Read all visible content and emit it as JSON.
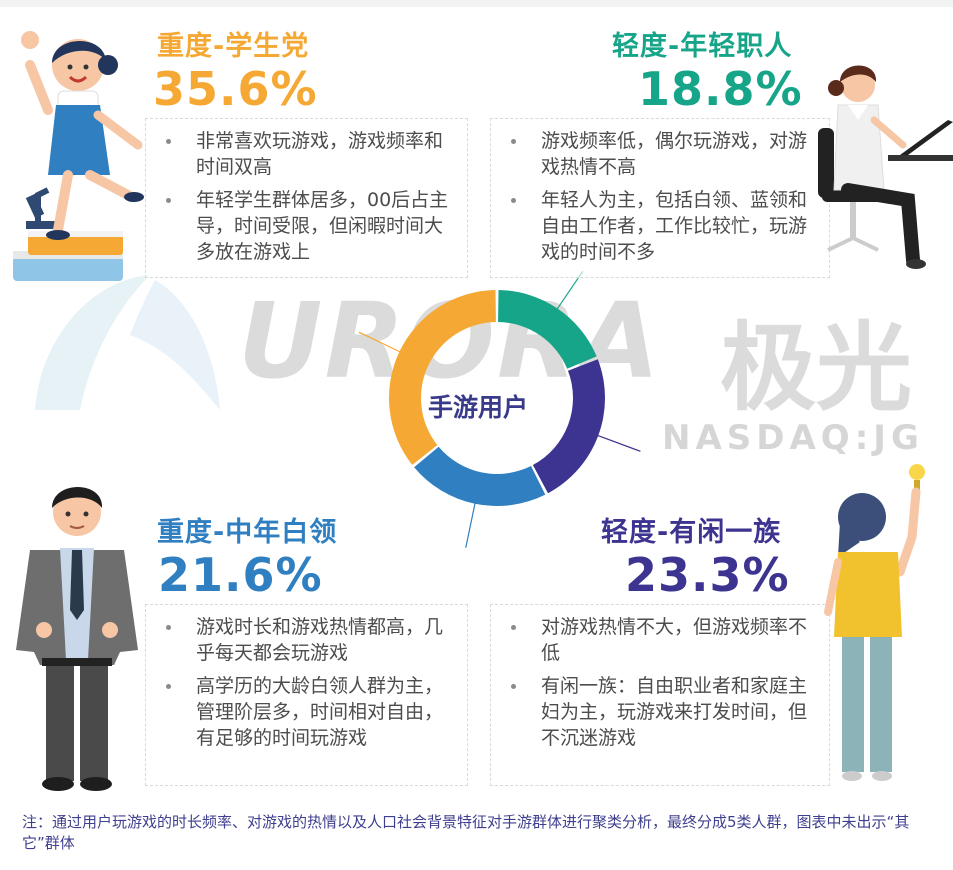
{
  "watermark": {
    "brand": "URORA",
    "brand_cn": "极光",
    "ticker": "NASDAQ:JG"
  },
  "chart_data": {
    "type": "pie",
    "center_label": "手游用户",
    "segments": [
      {
        "title": "轻度-年轻职人",
        "value": 18.8,
        "label": "18.8%",
        "color": "#17a589"
      },
      {
        "title": "轻度-有闲一族",
        "value": 23.3,
        "label": "23.3%",
        "color": "#3c3490"
      },
      {
        "title": "重度-中年白领",
        "value": 21.6,
        "label": "21.6%",
        "color": "#2f7fc1"
      },
      {
        "title": "重度-学生党",
        "value": 35.6,
        "label": "35.6%",
        "color": "#f5a833"
      }
    ]
  },
  "segments_text": {
    "student": {
      "title": "重度-学生党",
      "pct": "35.6%",
      "bullets": [
        "非常喜欢玩游戏，游戏频率和时间双高",
        "年轻学生群体居多，00后占主导，时间受限，但闲暇时间大多放在游戏上"
      ]
    },
    "young_worker": {
      "title": "轻度-年轻职人",
      "pct": "18.8%",
      "bullets": [
        "游戏频率低，偶尔玩游戏，对游戏热情不高",
        "年轻人为主，包括白领、蓝领和自由工作者，工作比较忙，玩游戏的时间不多"
      ]
    },
    "white_collar": {
      "title": "重度-中年白领",
      "pct": "21.6%",
      "bullets": [
        "游戏时长和游戏热情都高，几乎每天都会玩游戏",
        "高学历的大龄白领人群为主，管理阶层多，时间相对自由，有足够的时间玩游戏"
      ]
    },
    "leisure": {
      "title": "轻度-有闲一族",
      "pct": "23.3%",
      "bullets": [
        "对游戏热情不大，但游戏频率不低",
        "有闲一族：自由职业者和家庭主妇为主，玩游戏来打发时间，但不沉迷游戏"
      ]
    }
  },
  "footnote": "注：通过用户玩游戏的时长频率、对游戏的热情以及人口社会背景特征对手游群体进行聚类分析，最终分成5类人群，图表中未出示“其它”群体",
  "colors": {
    "orange": "#f5a833",
    "teal": "#17a589",
    "blue": "#2f7fc1",
    "purple": "#3c3490"
  },
  "illustrations": [
    "student-girl-figure",
    "office-worker-figure",
    "businessman-figure",
    "woman-with-lightbulb-figure"
  ]
}
